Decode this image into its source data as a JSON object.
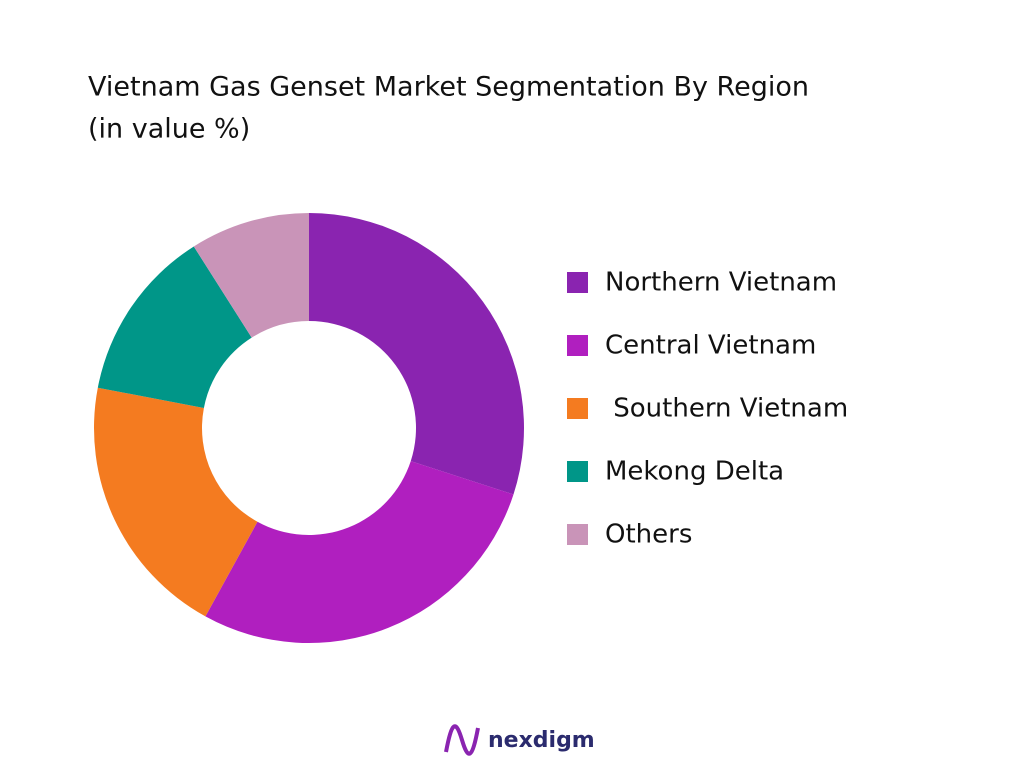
{
  "chart_data": {
    "type": "donut",
    "title": "Vietnam Gas Genset Market Segmentation By Region",
    "subtitle": "(in value %)",
    "categories": [
      "Northern Vietnam",
      "Central Vietnam",
      " Southern Vietnam",
      "Mekong Delta",
      "Others"
    ],
    "values": [
      30,
      28,
      20,
      13,
      9
    ],
    "colors": [
      "#8a24b0",
      "#b01fbf",
      "#f47b20",
      "#009688",
      "#c994b8"
    ],
    "legend": "right"
  },
  "brand": "nexdigm"
}
